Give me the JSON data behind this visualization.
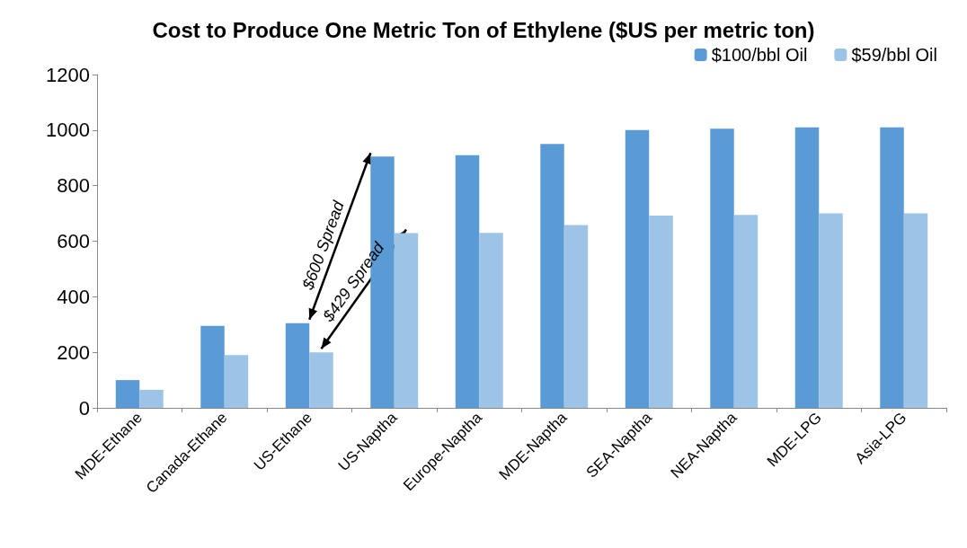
{
  "chart_data": {
    "type": "bar",
    "title": "Cost to Produce One Metric Ton of Ethylene ($US per metric ton)",
    "categories": [
      "MDE-Ethane",
      "Canada-Ethane",
      "US-Ethane",
      "US-Naptha",
      "Europe-Naptha",
      "MDE-Naptha",
      "SEA-Naptha",
      "NEA-Naptha",
      "MDE-LPG",
      "Asia-LPG"
    ],
    "series": [
      {
        "name": "$100/bbl Oil",
        "color": "#5b9bd5",
        "values": [
          100,
          295,
          305,
          905,
          910,
          950,
          1000,
          1005,
          1010,
          1010
        ]
      },
      {
        "name": "$59/bbl Oil",
        "color": "#9dc3e6",
        "values": [
          65,
          190,
          200,
          629,
          630,
          658,
          692,
          695,
          700,
          700
        ]
      }
    ],
    "ylim": [
      0,
      1200
    ],
    "yticks": [
      0,
      200,
      400,
      600,
      800,
      1000,
      1200
    ],
    "grid": false,
    "legend": "top right",
    "annotations": [
      "$600 Spread",
      {
        "text": "$429 Spread",
        "x": "US-Naptha",
        "y": 629
      }
    ]
  }
}
